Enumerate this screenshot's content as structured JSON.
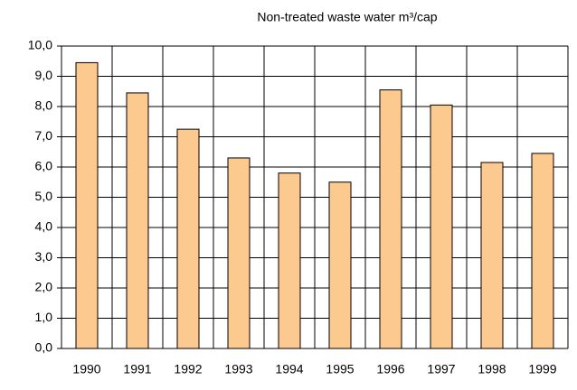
{
  "chart_data": {
    "type": "bar",
    "title": "Non-treated waste water m³/cap",
    "categories": [
      "1990",
      "1991",
      "1992",
      "1993",
      "1994",
      "1995",
      "1996",
      "1997",
      "1998",
      "1999"
    ],
    "values": [
      9.45,
      8.45,
      7.25,
      6.3,
      5.8,
      5.5,
      8.55,
      8.05,
      6.15,
      6.45
    ],
    "color": "#fcc98f",
    "ylim": [
      0,
      10
    ],
    "yticks": [
      {
        "value": 0,
        "label": "0,0"
      },
      {
        "value": 1,
        "label": "1,0"
      },
      {
        "value": 2,
        "label": "2,0"
      },
      {
        "value": 3,
        "label": "3,0"
      },
      {
        "value": 4,
        "label": "4,0"
      },
      {
        "value": 5,
        "label": "5,0"
      },
      {
        "value": 6,
        "label": "6,0"
      },
      {
        "value": 7,
        "label": "7,0"
      },
      {
        "value": 8,
        "label": "8,0"
      },
      {
        "value": 9,
        "label": "9,0"
      },
      {
        "value": 10,
        "label": "10,0"
      }
    ],
    "grid": true
  }
}
